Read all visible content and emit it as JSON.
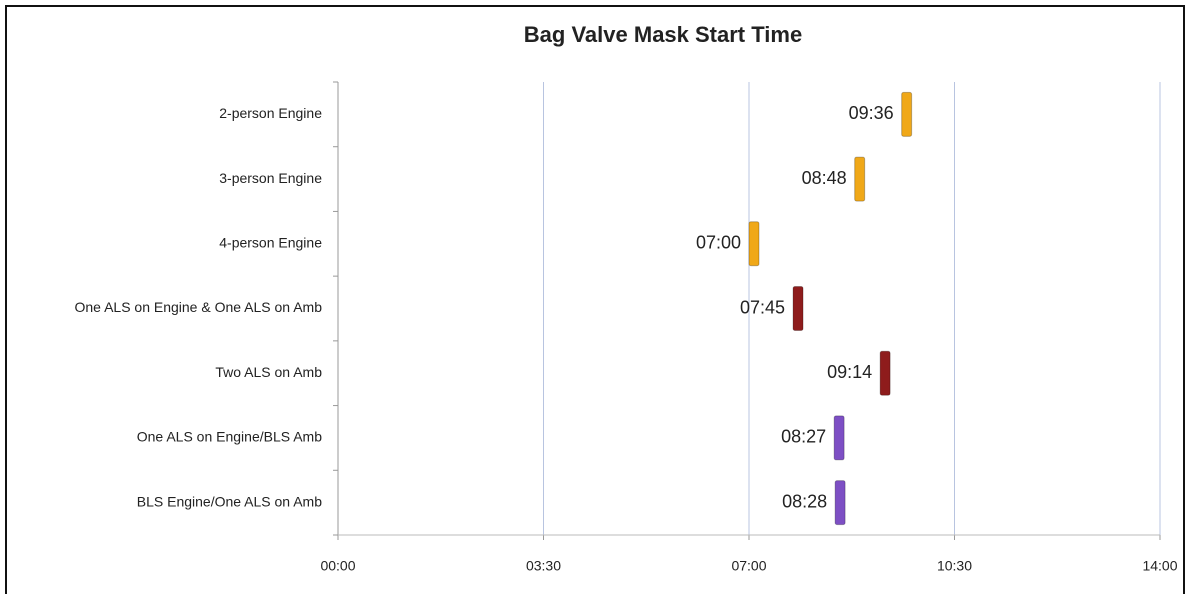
{
  "chart_data": {
    "type": "marker",
    "title": "Bag Valve Mask Start Time",
    "categories": [
      "2-person Engine",
      "3-person Engine",
      "4-person Engine",
      "One ALS on Engine & One ALS on Amb",
      "Two ALS on Amb",
      "One ALS on Engine/BLS Amb",
      "BLS Engine/One ALS on Amb"
    ],
    "values": [
      9.6,
      8.8,
      7,
      7.75,
      9.2333,
      8.45,
      8.4667
    ],
    "value_labels": [
      "09:36",
      "08:48",
      "07:00",
      "07:45",
      "09:14",
      "08:27",
      "08:28"
    ],
    "colors": [
      "#f0a818",
      "#f0a818",
      "#f0a818",
      "#8e1c1c",
      "#8e1c1c",
      "#7d4fc4",
      "#7d4fc4"
    ],
    "xlim": [
      0,
      14
    ],
    "xticks": [
      {
        "value": 0,
        "label": "00:00"
      },
      {
        "value": 3.5,
        "label": "03:30"
      },
      {
        "value": 7,
        "label": "07:00"
      },
      {
        "value": 10.5,
        "label": "10:30"
      },
      {
        "value": 14,
        "label": "14:00"
      }
    ],
    "grid": true
  }
}
